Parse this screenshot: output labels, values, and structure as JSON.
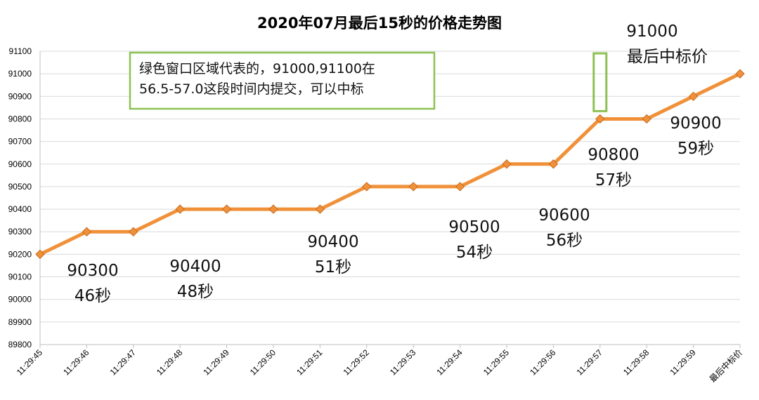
{
  "chart_data": {
    "type": "line",
    "title": "2020年07月最后15秒的价格走势图",
    "xlabel": "",
    "ylabel": "",
    "categories": [
      "11:29:45",
      "11:29:46",
      "11:29:47",
      "11:29:48",
      "11:29:49",
      "11:29:50",
      "11:29:51",
      "11:29:52",
      "11:29:53",
      "11:29:54",
      "11:29:55",
      "11:29:56",
      "11:29:57",
      "11:29:58",
      "11:29:59",
      "最后中标价"
    ],
    "series": [
      {
        "values": [
          90200,
          90300,
          90300,
          90400,
          90400,
          90400,
          90400,
          90500,
          90500,
          90500,
          90600,
          90600,
          90800,
          90800,
          90900,
          91000
        ]
      }
    ],
    "ylim": [
      89800,
      91100
    ],
    "yticks": [
      89800,
      89900,
      90000,
      90100,
      90200,
      90300,
      90400,
      90500,
      90600,
      90700,
      90800,
      90900,
      91000,
      91100
    ],
    "grid": true,
    "legend": "none",
    "colors": {
      "line": "#f0913a",
      "marker": "#f0913a",
      "marker_edge": "#c66b1e",
      "highlight_box": "#8cc152"
    },
    "annotations": [
      {
        "lines": [
          "90300",
          "46秒"
        ],
        "x_index": 1
      },
      {
        "lines": [
          "90400",
          "48秒"
        ],
        "x_index": 3
      },
      {
        "lines": [
          "90400",
          "51秒"
        ],
        "x_index": 6
      },
      {
        "lines": [
          "90500",
          "54秒"
        ],
        "x_index": 9
      },
      {
        "lines": [
          "90600",
          "56秒"
        ],
        "x_index": 11
      },
      {
        "lines": [
          "90800",
          "57秒"
        ],
        "x_index": 12
      },
      {
        "lines": [
          "90900",
          "59秒"
        ],
        "x_index": 14
      },
      {
        "lines": [
          "91000",
          "最后中标价"
        ],
        "x_index": 14
      }
    ],
    "note_box": {
      "lines": [
        "绿色窗口区域代表的，91000,91100在",
        "56.5-57.0这段时间内提交，可以中标"
      ]
    },
    "highlight_window": {
      "x_from": 12,
      "x_to": 12,
      "y_from": 90850,
      "y_to": 91100
    }
  }
}
